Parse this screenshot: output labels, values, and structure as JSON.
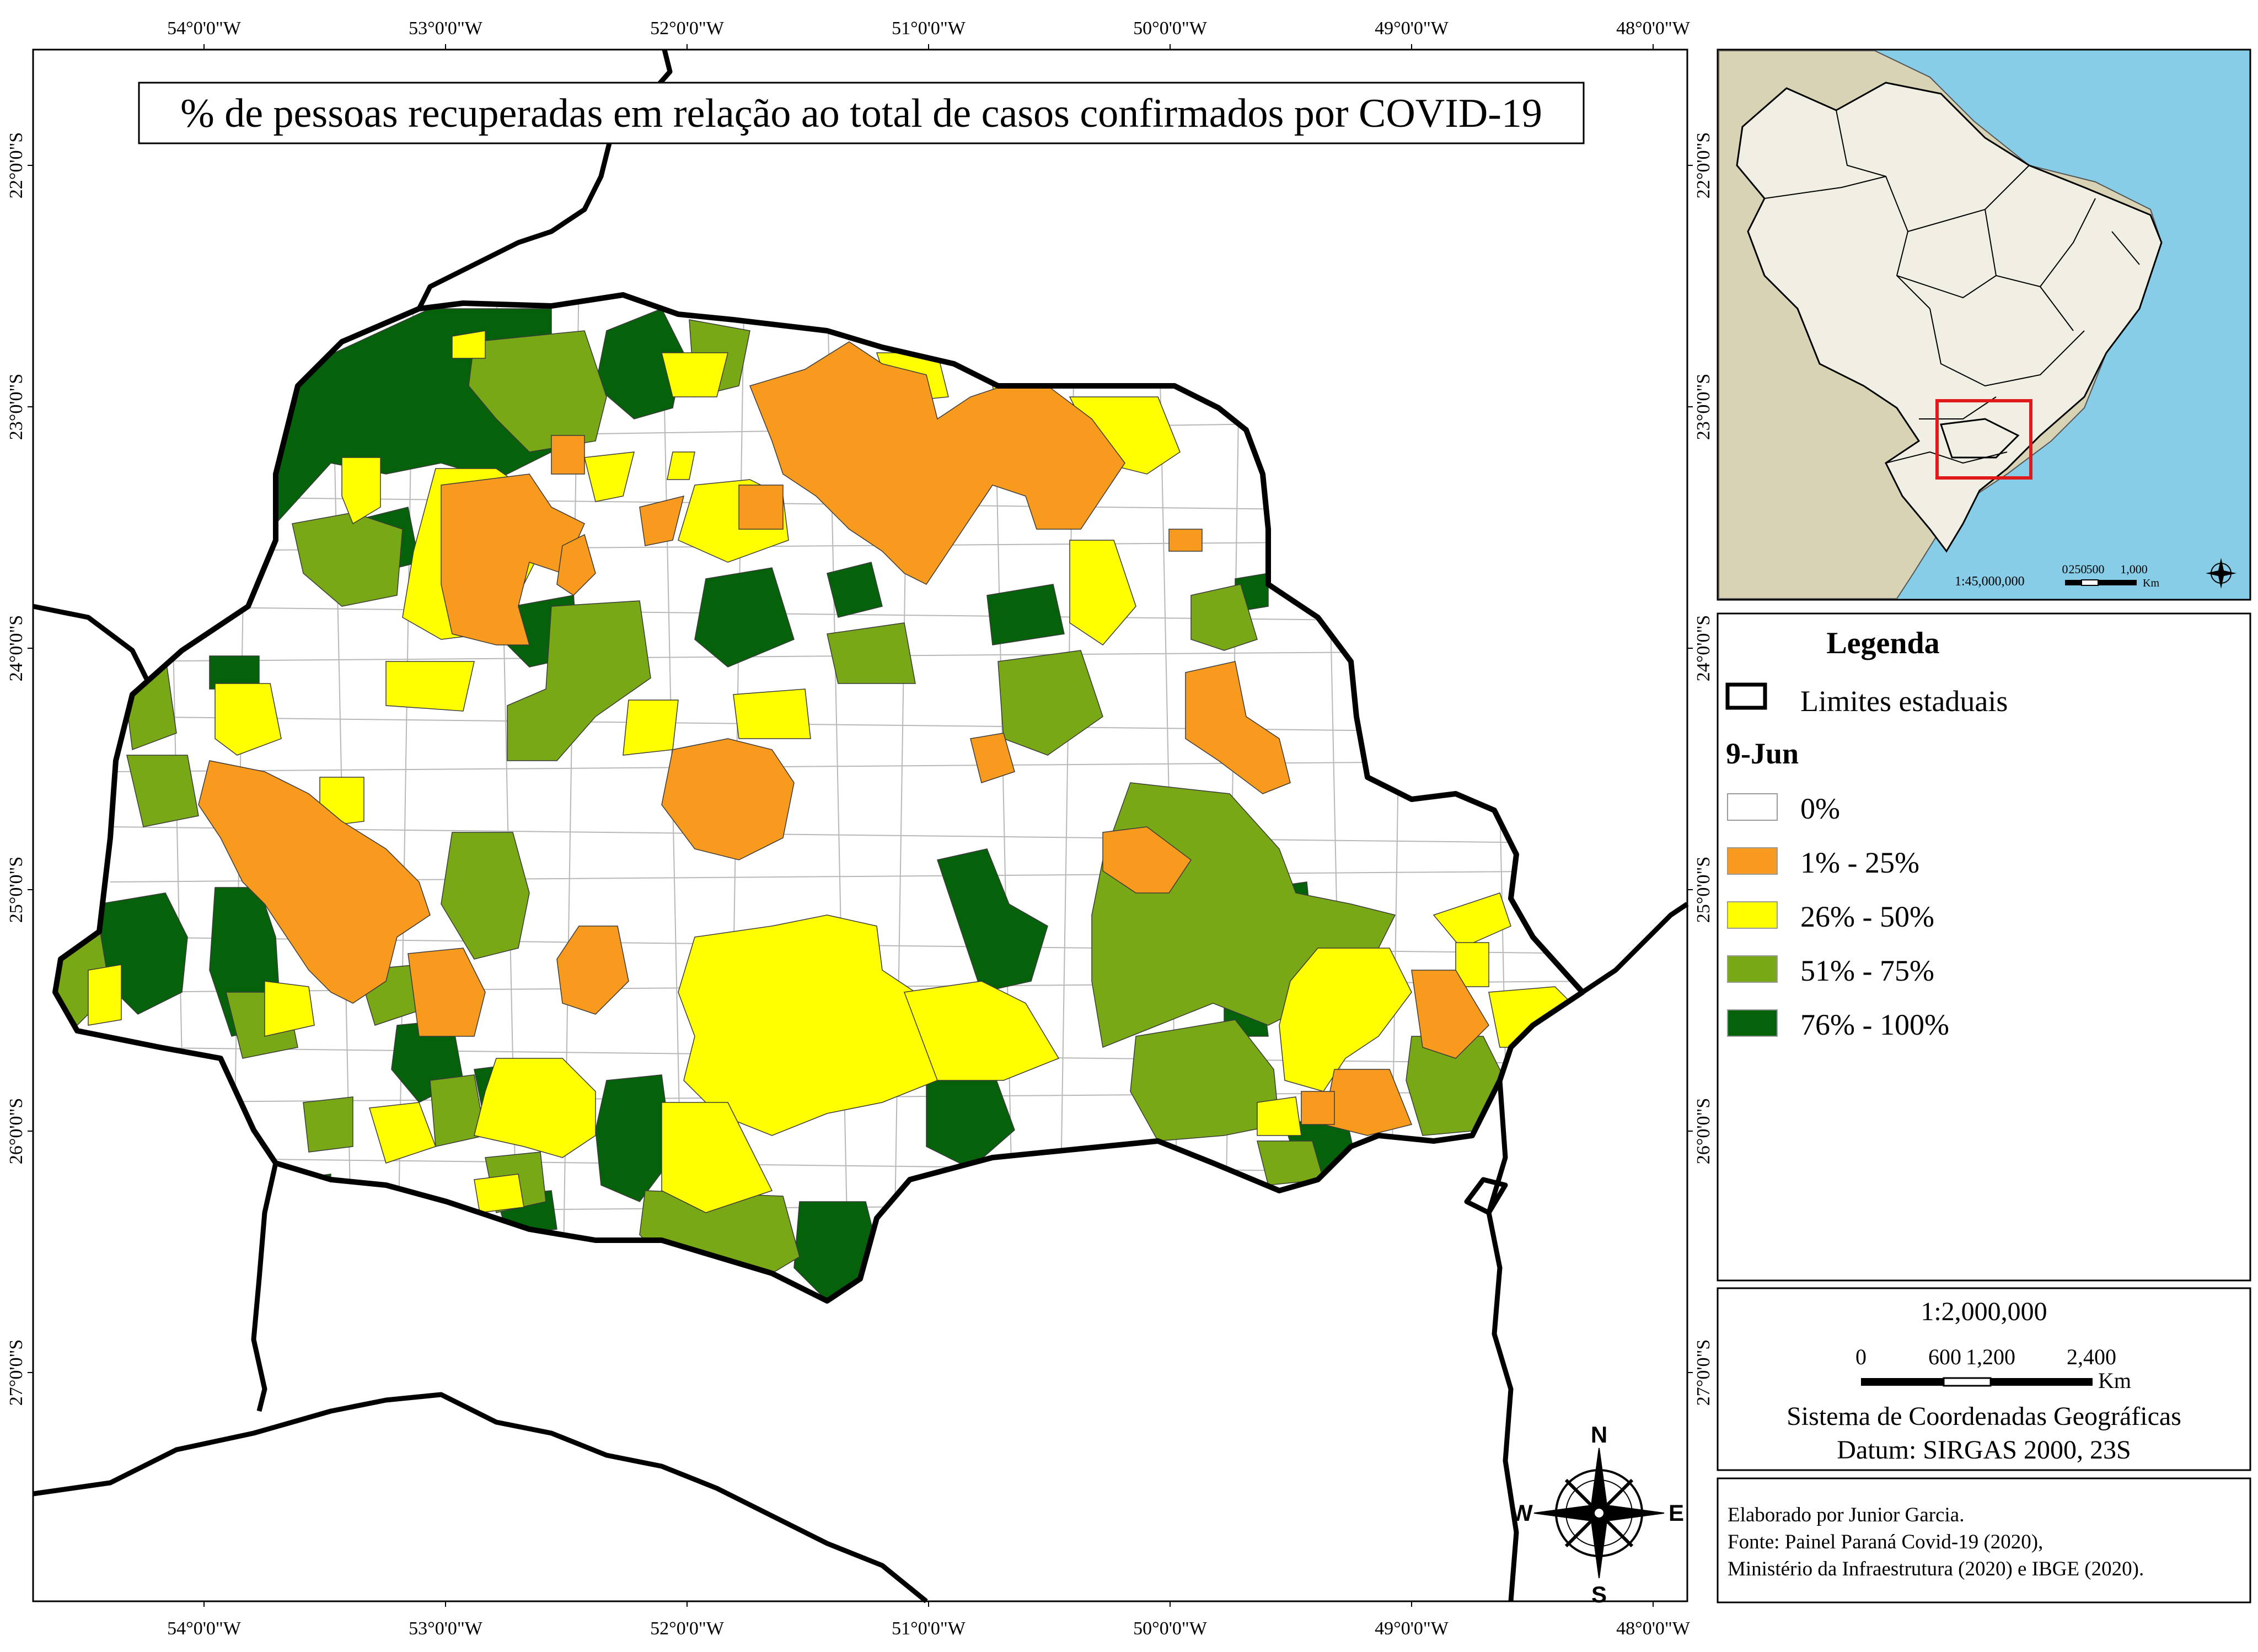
{
  "map": {
    "title": "% de pessoas recuperadas em relação ao total de casos confirmados por COVID-19",
    "longitude_labels": [
      "54°0'0\"W",
      "53°0'0\"W",
      "52°0'0\"W",
      "51°0'0\"W",
      "50°0'0\"W",
      "49°0'0\"W",
      "48°0'0\"W"
    ],
    "latitude_labels": [
      "22°0'0\"S",
      "23°0'0\"S",
      "24°0'0\"S",
      "25°0'0\"S",
      "26°0'0\"S",
      "27°0'0\"S"
    ],
    "north_arrow": {
      "n": "N",
      "s": "S",
      "e": "E",
      "w": "W"
    }
  },
  "inset": {
    "scale": "1:45,000,000",
    "bar_labels": [
      "0",
      "250",
      "500",
      "1,000"
    ],
    "unit": "Km",
    "colors": {
      "ocean": "#87cde8",
      "land": "#d7d3b4",
      "brazil": "#f1efe3",
      "highlight": "#e0191b"
    }
  },
  "legend": {
    "heading": "Legenda",
    "state_limits": "Limites estaduais",
    "date": "9-Jun",
    "classes": [
      {
        "label": "0%",
        "color": "#ffffff"
      },
      {
        "label": "1% - 25%",
        "color": "#f89a1d"
      },
      {
        "label": "26% - 50%",
        "color": "#ffff00"
      },
      {
        "label": "51% - 75%",
        "color": "#78a816"
      },
      {
        "label": "76% - 100%",
        "color": "#05620a"
      }
    ]
  },
  "scale_box": {
    "scale": "1:2,000,000",
    "bar_labels": [
      "0",
      "600",
      "1,200",
      "2,400"
    ],
    "unit": "Km",
    "line1": "Sistema de Coordenadas Geográficas",
    "line2": "Datum: SIRGAS 2000, 23S"
  },
  "credits": {
    "line1": "Elaborado por Junior Garcia.",
    "line2": "Fonte: Painel Paraná Covid-19 (2020),",
    "line3": "Ministério da Infraestrutura (2020) e IBGE (2020)."
  }
}
